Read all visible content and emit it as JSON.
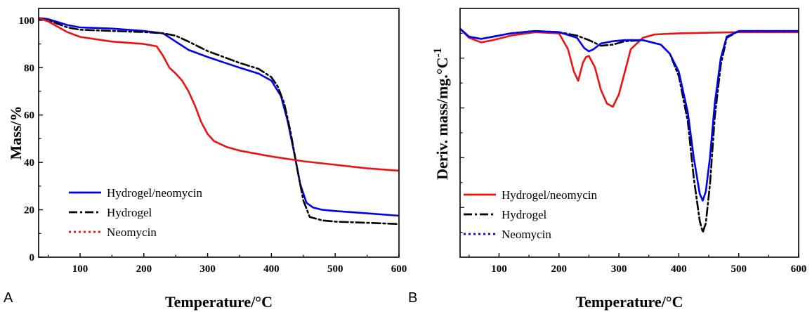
{
  "chart_data": [
    {
      "type": "line",
      "panel_label": "A",
      "xlabel": "Temperature/°C",
      "ylabel": "Mass/%",
      "xlim": [
        35,
        600
      ],
      "ylim": [
        0,
        105
      ],
      "xticks": [
        100,
        200,
        300,
        400,
        500,
        600
      ],
      "yticks": [
        0,
        20,
        40,
        60,
        80,
        100
      ],
      "legend_position": "bottom-left",
      "legend": [
        "Hydrogel/neomycin",
        "Hydrogel",
        "Neomycin"
      ],
      "series": [
        {
          "name": "Hydrogel/neomycin",
          "color": "#0000ee",
          "dash": "solid",
          "x": [
            35,
            50,
            80,
            100,
            150,
            200,
            230,
            250,
            270,
            300,
            350,
            380,
            400,
            415,
            425,
            435,
            445,
            455,
            465,
            480,
            500,
            550,
            600
          ],
          "y": [
            101,
            100.5,
            98,
            97,
            96.5,
            95.5,
            94.5,
            91,
            87.5,
            84.5,
            80,
            77.5,
            74.5,
            68,
            58,
            45,
            31,
            23,
            21,
            20,
            19.5,
            18.5,
            17.5
          ]
        },
        {
          "name": "Hydrogel",
          "color": "#000000",
          "dash": "dashdot",
          "x": [
            35,
            50,
            80,
            100,
            150,
            200,
            230,
            250,
            270,
            300,
            350,
            380,
            400,
            410,
            420,
            430,
            440,
            450,
            460,
            480,
            500,
            550,
            600
          ],
          "y": [
            100.5,
            100,
            97,
            96,
            95.5,
            95,
            94.5,
            93.5,
            91,
            87,
            82,
            79.5,
            76,
            72,
            65,
            53,
            38,
            24,
            17,
            15.5,
            15,
            14.5,
            14
          ]
        },
        {
          "name": "Neomycin",
          "color": "#ee1111",
          "dash": "solid",
          "x": [
            35,
            50,
            80,
            100,
            150,
            200,
            220,
            230,
            240,
            250,
            260,
            270,
            280,
            290,
            300,
            310,
            330,
            350,
            400,
            450,
            500,
            550,
            600
          ],
          "y": [
            101,
            99.5,
            95,
            93,
            91,
            90,
            89,
            85,
            80,
            77.5,
            74.5,
            70,
            64,
            57,
            52,
            49,
            46.5,
            45,
            42.5,
            40.5,
            39,
            37.5,
            36.5
          ]
        }
      ]
    },
    {
      "type": "line",
      "panel_label": "B",
      "xlabel": "Temperature/°C",
      "ylabel": "Deriv. mass/mg.°C",
      "ylabel_superscript": "-1",
      "xlim": [
        35,
        600
      ],
      "ylim": [
        -10,
        1
      ],
      "xticks": [
        100,
        200,
        300,
        400,
        500,
        600
      ],
      "yticks_labeled": false,
      "legend_position": "bottom-left",
      "legend": [
        "Hydrogel/neomycin",
        "Hydrogel",
        "Neomycin"
      ],
      "series": [
        {
          "name": "Neomycin",
          "color": "#ee1111",
          "dash": "solid",
          "x": [
            35,
            50,
            70,
            90,
            120,
            160,
            200,
            215,
            225,
            232,
            240,
            245,
            250,
            260,
            270,
            280,
            290,
            300,
            310,
            320,
            340,
            360,
            400,
            500,
            600
          ],
          "y": [
            0.1,
            -0.3,
            -0.5,
            -0.4,
            -0.2,
            -0.05,
            -0.1,
            -0.8,
            -1.8,
            -2.2,
            -1.4,
            -1.15,
            -1.1,
            -1.6,
            -2.6,
            -3.2,
            -3.35,
            -2.8,
            -1.8,
            -0.8,
            -0.3,
            -0.15,
            -0.1,
            -0.05,
            -0.05
          ]
        },
        {
          "name": "Hydrogel",
          "color": "#000000",
          "dash": "dashdot",
          "x": [
            35,
            50,
            70,
            90,
            120,
            160,
            200,
            230,
            250,
            270,
            290,
            310,
            340,
            370,
            385,
            400,
            415,
            425,
            435,
            440,
            445,
            452,
            460,
            470,
            480,
            500,
            600
          ],
          "y": [
            0.1,
            -0.25,
            -0.35,
            -0.25,
            -0.1,
            0,
            -0.05,
            -0.2,
            -0.4,
            -0.65,
            -0.6,
            -0.45,
            -0.4,
            -0.6,
            -1.0,
            -2.0,
            -4.0,
            -6.5,
            -8.4,
            -8.9,
            -8.5,
            -6.8,
            -3.8,
            -1.5,
            -0.3,
            0,
            0
          ]
        },
        {
          "name": "Hydrogel/neomycin",
          "color": "#0000ee",
          "dash": "solid",
          "x": [
            35,
            50,
            70,
            90,
            120,
            160,
            200,
            230,
            242,
            250,
            258,
            270,
            290,
            310,
            340,
            370,
            385,
            400,
            415,
            425,
            435,
            440,
            445,
            452,
            460,
            470,
            480,
            500,
            600
          ],
          "y": [
            0.1,
            -0.25,
            -0.35,
            -0.25,
            -0.1,
            0,
            -0.05,
            -0.3,
            -0.75,
            -0.9,
            -0.8,
            -0.55,
            -0.45,
            -0.4,
            -0.4,
            -0.6,
            -1.0,
            -1.8,
            -3.6,
            -5.6,
            -7.2,
            -7.5,
            -7.1,
            -5.6,
            -3.2,
            -1.2,
            -0.25,
            0,
            0
          ]
        }
      ]
    }
  ]
}
